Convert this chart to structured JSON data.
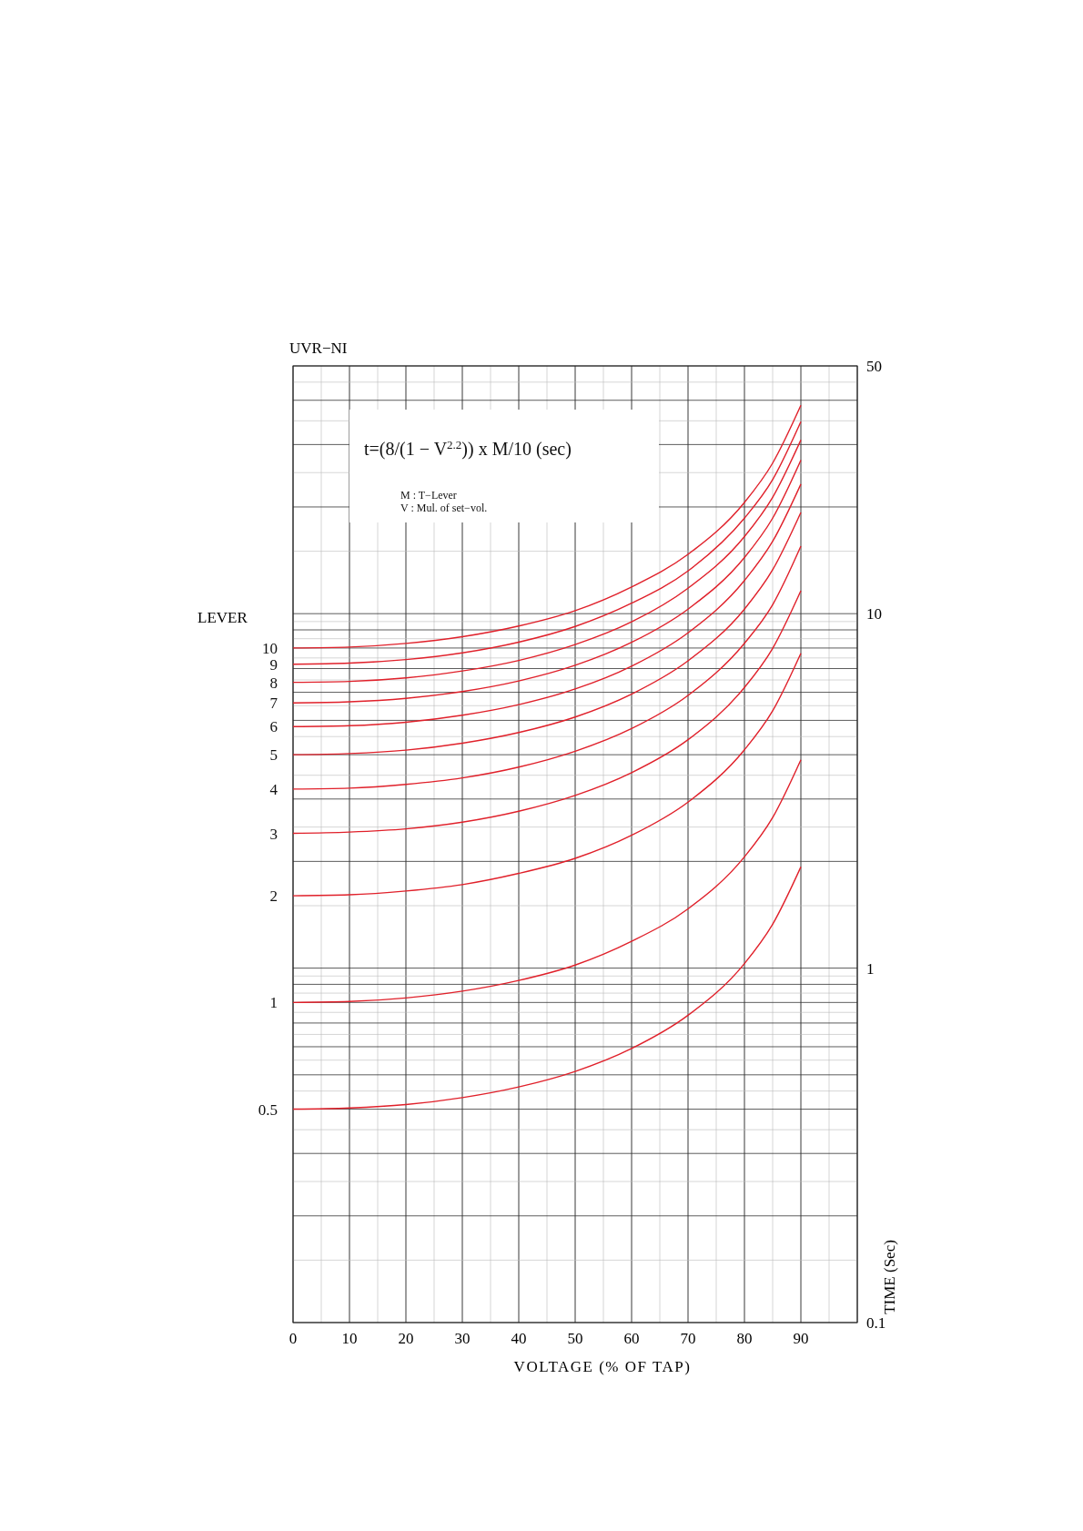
{
  "chart_data": {
    "type": "line",
    "title": "UVR−NI",
    "xlabel": "VOLTAGE (% OF TAP)",
    "ylabel": "TIME (Sec)",
    "legend_title": "LEVER",
    "legend": "left",
    "log": "y",
    "grid": true,
    "xlim": [
      0,
      100
    ],
    "xticks": [
      0,
      10,
      20,
      30,
      40,
      50,
      60,
      70,
      80,
      90
    ],
    "ylim": [
      0.1,
      50
    ],
    "yticks": [
      0.1,
      1,
      10,
      50
    ],
    "x": [
      0,
      10,
      20,
      30,
      40,
      50,
      60,
      70,
      80,
      85,
      90
    ],
    "annotations": [
      "t=(8/(1 − V$^{2.2}$)) x M/10  (sec)",
      "M : T−Lever",
      "V : Mul. of set−vol."
    ],
    "series": [
      {
        "name": "10",
        "color": "#e0202a",
        "values": [
          8,
          8.05,
          8.24,
          8.61,
          9.23,
          10.2,
          11.9,
          14.7,
          20.6,
          26.6,
          38.7
        ]
      },
      {
        "name": "9",
        "color": "#e0202a",
        "values": [
          7.2,
          7.25,
          7.42,
          7.75,
          8.31,
          9.2,
          10.7,
          13.2,
          18.6,
          23.9,
          34.8
        ]
      },
      {
        "name": "8",
        "color": "#e0202a",
        "values": [
          6.4,
          6.44,
          6.59,
          6.89,
          7.38,
          8.18,
          9.48,
          11.8,
          16.5,
          21.3,
          30.9
        ]
      },
      {
        "name": "7",
        "color": "#e0202a",
        "values": [
          5.6,
          5.64,
          5.77,
          6.03,
          6.46,
          7.15,
          8.3,
          10.3,
          14.4,
          18.6,
          27.1
        ]
      },
      {
        "name": "6",
        "color": "#e0202a",
        "values": [
          4.8,
          4.83,
          4.94,
          5.17,
          5.54,
          6.13,
          7.11,
          8.83,
          12.4,
          16,
          23.2
        ]
      },
      {
        "name": "5",
        "color": "#e0202a",
        "values": [
          4,
          4.03,
          4.12,
          4.31,
          4.62,
          5.11,
          5.93,
          7.36,
          10.3,
          13.3,
          19.3
        ]
      },
      {
        "name": "4",
        "color": "#e0202a",
        "values": [
          3.2,
          3.22,
          3.3,
          3.44,
          3.69,
          4.09,
          4.74,
          5.88,
          8.25,
          10.6,
          15.5
        ]
      },
      {
        "name": "3",
        "color": "#e0202a",
        "values": [
          2.4,
          2.42,
          2.47,
          2.58,
          2.77,
          3.07,
          3.56,
          4.41,
          6.19,
          7.98,
          11.6
        ]
      },
      {
        "name": "2",
        "color": "#e0202a",
        "values": [
          1.6,
          1.61,
          1.65,
          1.72,
          1.85,
          2.04,
          2.37,
          2.94,
          4.13,
          5.32,
          7.73
        ]
      },
      {
        "name": "1",
        "color": "#e0202a",
        "values": [
          0.8,
          0.805,
          0.824,
          0.861,
          0.923,
          1.02,
          1.19,
          1.47,
          2.06,
          2.66,
          3.87
        ]
      },
      {
        "name": "0.5",
        "color": "#e0202a",
        "values": [
          0.4,
          0.403,
          0.412,
          0.431,
          0.462,
          0.511,
          0.593,
          0.736,
          1.03,
          1.33,
          1.93
        ]
      }
    ]
  }
}
